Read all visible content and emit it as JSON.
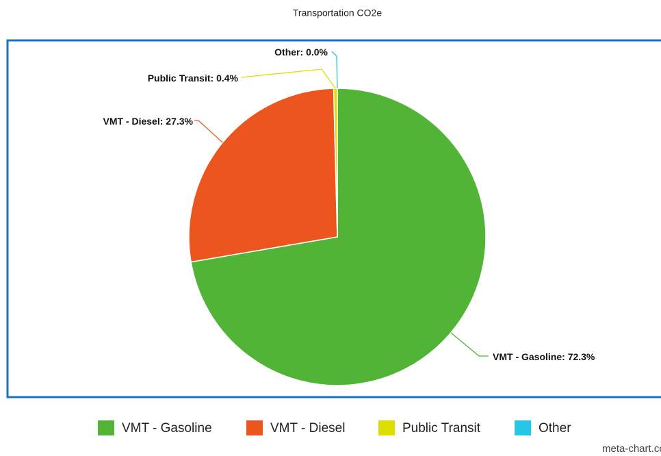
{
  "chart_data": {
    "type": "pie",
    "title": "Transportation CO2e",
    "categories": [
      "VMT - Gasoline",
      "VMT - Diesel",
      "Public Transit",
      "Other"
    ],
    "values": [
      72.3,
      27.3,
      0.4,
      0.0
    ],
    "value_labels": [
      "72.3%",
      "27.3%",
      "0.4%",
      "0.0%"
    ],
    "colors": [
      "#52b436",
      "#ec561e",
      "#dede00",
      "#27c6e6"
    ],
    "legend": "bottom",
    "watermark": "meta-chart.com"
  }
}
